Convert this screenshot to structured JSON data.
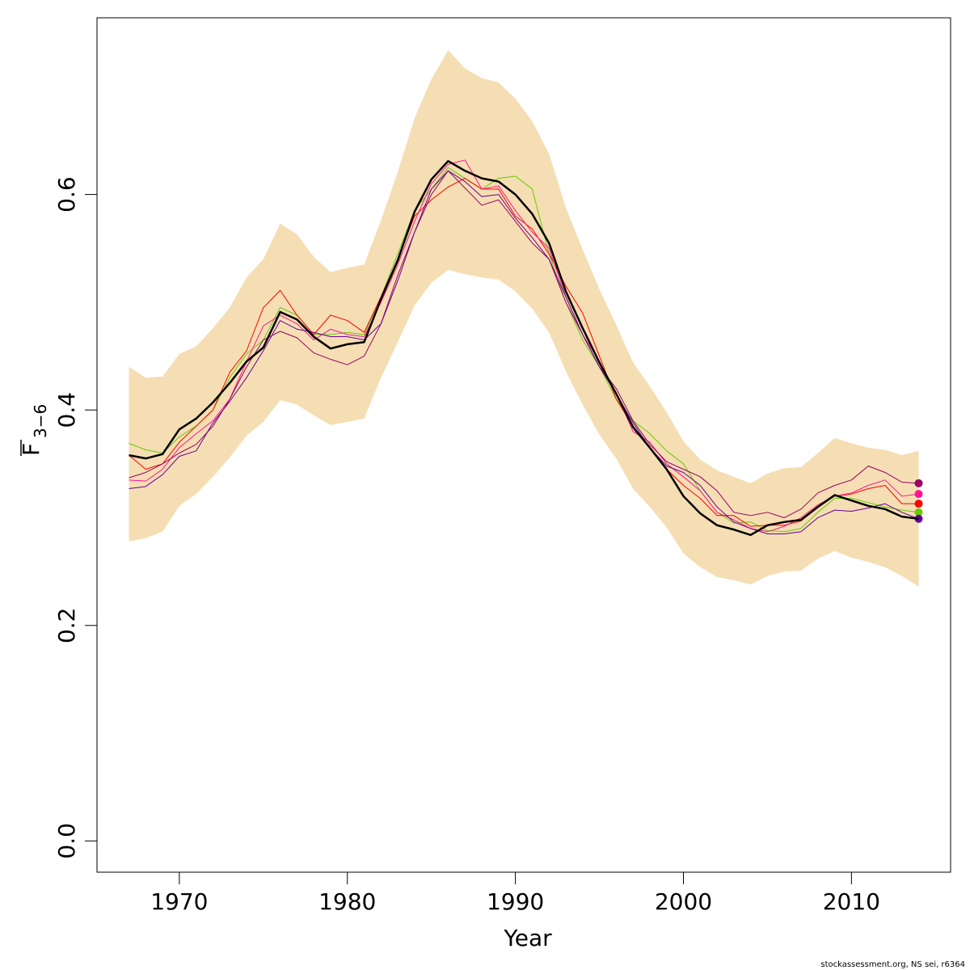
{
  "chart_data": {
    "type": "line",
    "x_label": "Year",
    "y_label": "F",
    "y_label_sub": "3−6",
    "footnote": "stockassessment.org, NS sei, r6364",
    "x": [
      1967,
      1968,
      1969,
      1970,
      1971,
      1972,
      1973,
      1974,
      1975,
      1976,
      1977,
      1978,
      1979,
      1980,
      1981,
      1982,
      1983,
      1984,
      1985,
      1986,
      1987,
      1988,
      1989,
      1990,
      1991,
      1992,
      1993,
      1994,
      1995,
      1996,
      1997,
      1998,
      1999,
      2000,
      2001,
      2002,
      2003,
      2004,
      2005,
      2006,
      2007,
      2008,
      2009,
      2010,
      2011,
      2012,
      2013,
      2014
    ],
    "xlim": [
      1965.1,
      2015.9
    ],
    "xticks": [
      1970,
      1980,
      1990,
      2000,
      2010
    ],
    "ylim": [
      -0.029,
      0.764
    ],
    "yticks": [
      {
        "value": 0,
        "label": "0.0"
      },
      0.2,
      0.4,
      0.6
    ],
    "band": {
      "color": "#f5deb3",
      "upper": [
        0.44,
        0.43,
        0.431,
        0.452,
        0.459,
        0.476,
        0.495,
        0.523,
        0.54,
        0.573,
        0.563,
        0.542,
        0.528,
        0.532,
        0.535,
        0.576,
        0.621,
        0.671,
        0.707,
        0.734,
        0.717,
        0.708,
        0.704,
        0.689,
        0.668,
        0.638,
        0.588,
        0.549,
        0.512,
        0.479,
        0.444,
        0.422,
        0.398,
        0.371,
        0.354,
        0.344,
        0.338,
        0.332,
        0.341,
        0.346,
        0.347,
        0.36,
        0.374,
        0.369,
        0.365,
        0.363,
        0.358,
        0.362
      ],
      "lower": [
        0.278,
        0.281,
        0.287,
        0.311,
        0.322,
        0.338,
        0.356,
        0.376,
        0.389,
        0.409,
        0.405,
        0.395,
        0.386,
        0.389,
        0.392,
        0.43,
        0.463,
        0.497,
        0.518,
        0.53,
        0.526,
        0.523,
        0.521,
        0.51,
        0.494,
        0.472,
        0.436,
        0.405,
        0.377,
        0.355,
        0.327,
        0.31,
        0.291,
        0.267,
        0.254,
        0.245,
        0.242,
        0.238,
        0.246,
        0.25,
        0.251,
        0.262,
        0.269,
        0.263,
        0.259,
        0.254,
        0.246,
        0.236
      ]
    },
    "series": [
      {
        "color": "#66cc00",
        "width": 1,
        "values": [
          0.369,
          0.363,
          0.36,
          0.375,
          0.385,
          0.4,
          0.43,
          0.452,
          0.465,
          0.495,
          0.488,
          0.47,
          0.47,
          0.472,
          0.47,
          0.505,
          0.545,
          0.585,
          0.605,
          0.625,
          0.615,
          0.605,
          0.615,
          0.617,
          0.605,
          0.545,
          0.5,
          0.465,
          0.44,
          0.41,
          0.39,
          0.378,
          0.362,
          0.35,
          0.325,
          0.305,
          0.295,
          0.296,
          0.288,
          0.287,
          0.29,
          0.305,
          0.318,
          0.318,
          0.314,
          0.31,
          0.307,
          0.305
        ]
      },
      {
        "color": "#ff0000",
        "width": 1,
        "values": [
          0.358,
          0.345,
          0.35,
          0.37,
          0.385,
          0.4,
          0.435,
          0.455,
          0.495,
          0.511,
          0.488,
          0.47,
          0.488,
          0.483,
          0.472,
          0.505,
          0.54,
          0.58,
          0.595,
          0.607,
          0.615,
          0.605,
          0.605,
          0.58,
          0.568,
          0.545,
          0.515,
          0.49,
          0.45,
          0.41,
          0.385,
          0.365,
          0.345,
          0.33,
          0.318,
          0.302,
          0.302,
          0.292,
          0.293,
          0.293,
          0.297,
          0.31,
          0.32,
          0.322,
          0.327,
          0.33,
          0.313,
          0.313
        ]
      },
      {
        "color": "#ff1493",
        "width": 1,
        "values": [
          0.335,
          0.334,
          0.345,
          0.365,
          0.378,
          0.39,
          0.41,
          0.445,
          0.478,
          0.488,
          0.48,
          0.465,
          0.475,
          0.47,
          0.468,
          0.5,
          0.535,
          0.575,
          0.61,
          0.628,
          0.632,
          0.605,
          0.608,
          0.585,
          0.565,
          0.55,
          0.505,
          0.47,
          0.445,
          0.415,
          0.38,
          0.37,
          0.35,
          0.338,
          0.325,
          0.305,
          0.298,
          0.29,
          0.287,
          0.292,
          0.3,
          0.312,
          0.32,
          0.323,
          0.33,
          0.335,
          0.32,
          0.322
        ]
      },
      {
        "color": "#990066",
        "width": 1,
        "values": [
          0.337,
          0.342,
          0.35,
          0.36,
          0.368,
          0.385,
          0.41,
          0.44,
          0.465,
          0.473,
          0.467,
          0.453,
          0.447,
          0.442,
          0.45,
          0.48,
          0.525,
          0.565,
          0.6,
          0.622,
          0.606,
          0.59,
          0.595,
          0.575,
          0.555,
          0.54,
          0.5,
          0.47,
          0.44,
          0.42,
          0.39,
          0.368,
          0.352,
          0.345,
          0.338,
          0.325,
          0.305,
          0.302,
          0.305,
          0.3,
          0.308,
          0.323,
          0.33,
          0.335,
          0.348,
          0.342,
          0.333,
          0.332
        ]
      },
      {
        "color": "#660099",
        "width": 1,
        "values": [
          0.327,
          0.329,
          0.34,
          0.357,
          0.362,
          0.388,
          0.408,
          0.43,
          0.455,
          0.483,
          0.475,
          0.472,
          0.468,
          0.468,
          0.465,
          0.48,
          0.52,
          0.565,
          0.605,
          0.622,
          0.612,
          0.598,
          0.6,
          0.578,
          0.56,
          0.54,
          0.505,
          0.47,
          0.44,
          0.415,
          0.388,
          0.365,
          0.348,
          0.342,
          0.33,
          0.31,
          0.296,
          0.29,
          0.285,
          0.285,
          0.287,
          0.3,
          0.307,
          0.306,
          0.309,
          0.313,
          0.305,
          0.299
        ]
      },
      {
        "color": "#000000",
        "width": 2.5,
        "values": [
          0.358,
          0.355,
          0.359,
          0.382,
          0.392,
          0.407,
          0.425,
          0.445,
          0.458,
          0.491,
          0.484,
          0.468,
          0.457,
          0.461,
          0.463,
          0.503,
          0.539,
          0.584,
          0.614,
          0.631,
          0.622,
          0.615,
          0.612,
          0.6,
          0.582,
          0.555,
          0.51,
          0.476,
          0.444,
          0.415,
          0.384,
          0.365,
          0.345,
          0.32,
          0.304,
          0.293,
          0.289,
          0.284,
          0.293,
          0.296,
          0.298,
          0.31,
          0.321,
          0.316,
          0.311,
          0.308,
          0.301,
          0.299
        ]
      }
    ]
  }
}
